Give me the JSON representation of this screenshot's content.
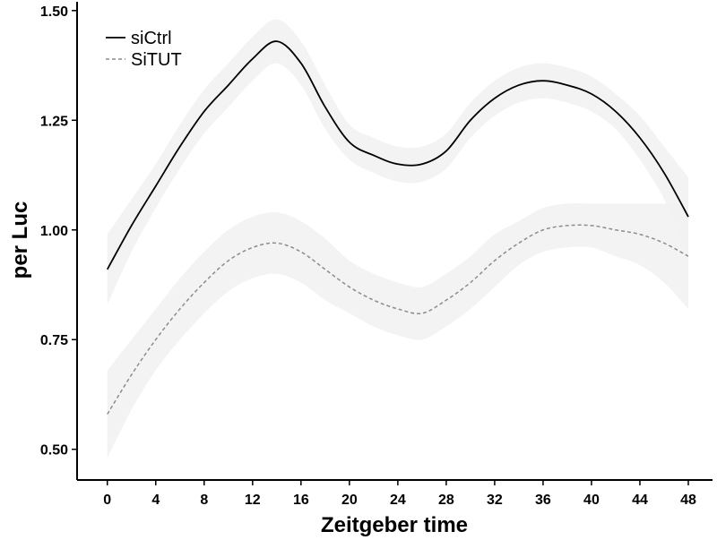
{
  "chart_data": {
    "type": "line",
    "xlabel": "Zeitgeber time",
    "ylabel": "per Luc",
    "xlim": [
      -2.5,
      50
    ],
    "ylim": [
      0.43,
      1.52
    ],
    "xticks": [
      "0",
      "4",
      "8",
      "12",
      "16",
      "20",
      "24",
      "28",
      "32",
      "36",
      "40",
      "44",
      "48"
    ],
    "yticks": [
      "0.50",
      "0.75",
      "1.00",
      "1.25",
      "1.50"
    ],
    "grid": false,
    "legend_position": "top-left",
    "series": [
      {
        "name": "siCtrl",
        "color": "#000000",
        "line_style": "solid",
        "x": [
          0,
          2,
          4,
          6,
          8,
          10,
          12,
          14,
          16,
          18,
          20,
          22,
          24,
          26,
          28,
          30,
          32,
          34,
          36,
          38,
          40,
          42,
          44,
          46,
          48
        ],
        "y": [
          0.91,
          1.01,
          1.1,
          1.19,
          1.27,
          1.33,
          1.39,
          1.43,
          1.38,
          1.28,
          1.2,
          1.17,
          1.15,
          1.15,
          1.18,
          1.25,
          1.3,
          1.33,
          1.34,
          1.33,
          1.31,
          1.27,
          1.21,
          1.13,
          1.03
        ],
        "ci_half_width": [
          0.08,
          0.06,
          0.05,
          0.05,
          0.05,
          0.05,
          0.05,
          0.05,
          0.05,
          0.05,
          0.04,
          0.04,
          0.04,
          0.04,
          0.04,
          0.04,
          0.04,
          0.04,
          0.04,
          0.04,
          0.04,
          0.04,
          0.05,
          0.06,
          0.09
        ]
      },
      {
        "name": "SiTUT",
        "color": "#8c8c8c",
        "line_style": "dashed",
        "x": [
          0,
          2,
          4,
          6,
          8,
          10,
          12,
          14,
          16,
          18,
          20,
          22,
          24,
          26,
          28,
          30,
          32,
          34,
          36,
          38,
          40,
          42,
          44,
          46,
          48
        ],
        "y": [
          0.58,
          0.67,
          0.75,
          0.82,
          0.88,
          0.93,
          0.96,
          0.97,
          0.95,
          0.91,
          0.87,
          0.84,
          0.82,
          0.81,
          0.84,
          0.88,
          0.93,
          0.97,
          1.0,
          1.01,
          1.01,
          1.0,
          0.99,
          0.97,
          0.94
        ],
        "ci_half_width": [
          0.1,
          0.08,
          0.07,
          0.07,
          0.07,
          0.07,
          0.07,
          0.07,
          0.07,
          0.07,
          0.06,
          0.06,
          0.06,
          0.06,
          0.06,
          0.06,
          0.06,
          0.05,
          0.05,
          0.05,
          0.05,
          0.06,
          0.07,
          0.09,
          0.12
        ]
      }
    ],
    "band_color": "#f2f2f2"
  }
}
